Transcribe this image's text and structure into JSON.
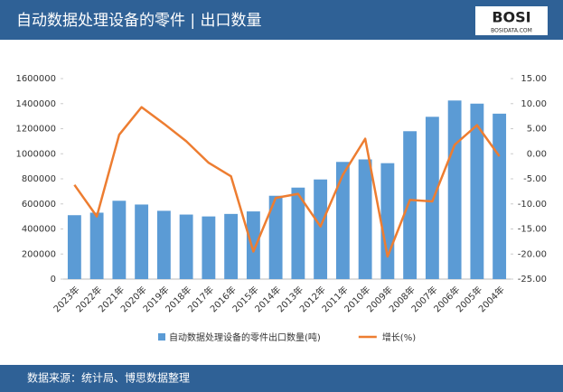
{
  "logo": {
    "text": "BOSI",
    "site": "BOSIDATA.COM"
  },
  "source": "数据来源：统计局、博思数据整理",
  "chart_data": {
    "type": "bar-line",
    "title": "自动数据处理设备的零件 | 出口数量",
    "categories": [
      "2023年",
      "2022年",
      "2021年",
      "2020年",
      "2019年",
      "2018年",
      "2017年",
      "2016年",
      "2015年",
      "2014年",
      "2013年",
      "2012年",
      "2011年",
      "2010年",
      "2009年",
      "2008年",
      "2007年",
      "2006年",
      "2005年",
      "2004年"
    ],
    "series": [
      {
        "name": "自动数据处理设备的零件出口数量(吨)",
        "type": "bar",
        "color": "#5b9bd5",
        "values": [
          510000,
          530000,
          625000,
          595000,
          545000,
          515000,
          500000,
          520000,
          540000,
          665000,
          730000,
          795000,
          935000,
          955000,
          925000,
          1180000,
          1295000,
          1425000,
          1400000,
          1320000
        ]
      },
      {
        "name": "增长(%)",
        "type": "line",
        "color": "#ed7d31",
        "axis": "y2",
        "values": [
          -6.2,
          -12.5,
          3.8,
          9.3,
          6.0,
          2.5,
          -1.8,
          -4.5,
          -19.5,
          -8.8,
          -8.0,
          -14.5,
          -4.2,
          3.0,
          -20.5,
          -9.2,
          -9.5,
          1.8,
          5.7,
          -0.5
        ]
      }
    ],
    "ylim": [
      0,
      1600000
    ],
    "yticks": [
      0,
      200000,
      400000,
      600000,
      800000,
      1000000,
      1200000,
      1400000,
      1600000
    ],
    "y2lim": [
      -25,
      15
    ],
    "y2ticks": [
      {
        "value": -25,
        "label": "-25.00"
      },
      {
        "value": -20,
        "label": "-20.00"
      },
      {
        "value": -15,
        "label": "-15.00"
      },
      {
        "value": -10,
        "label": "-10.00"
      },
      {
        "value": -5,
        "label": "-5.00"
      },
      {
        "value": 0,
        "label": "0.00"
      },
      {
        "value": 5,
        "label": "5.00"
      },
      {
        "value": 10,
        "label": "10.00"
      },
      {
        "value": 15,
        "label": "15.00"
      }
    ],
    "grid": false
  }
}
